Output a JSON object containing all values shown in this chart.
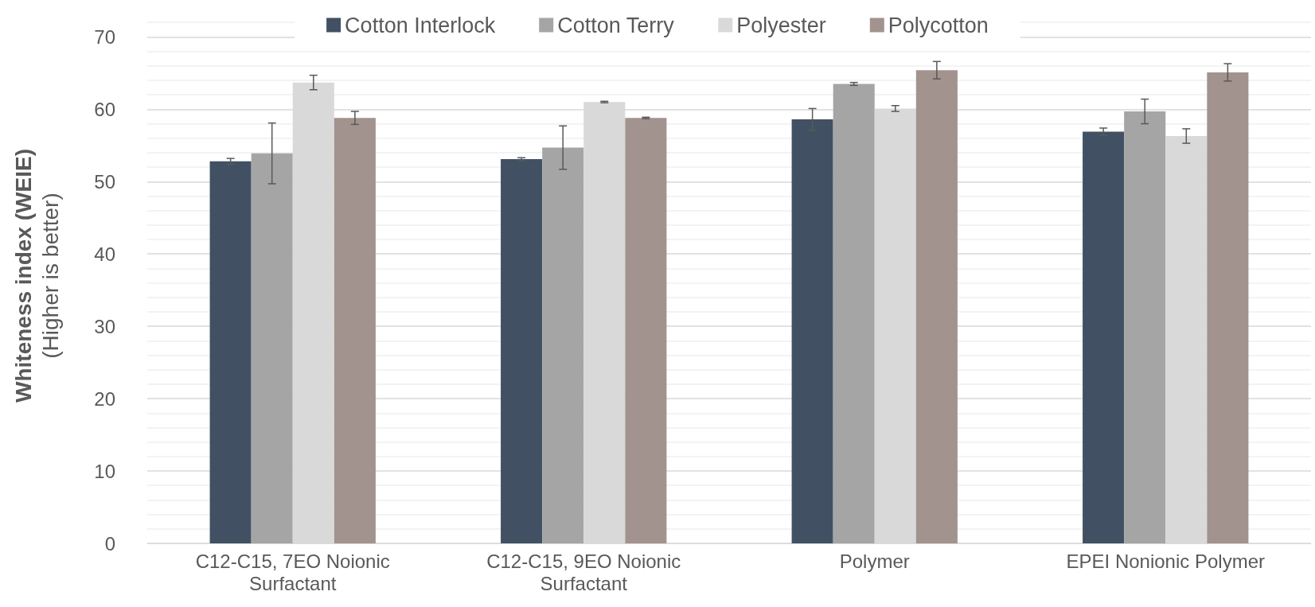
{
  "chart_data": {
    "type": "bar",
    "ylabel": "Whiteness index (WEIE)\n(Higher is better)",
    "categories": [
      "C12-C15, 7EO Noionic\nSurfactant",
      "C12-C15, 9EO Noionic\nSurfactant",
      "Polymer",
      "EPEI Nonionic Polymer"
    ],
    "series": [
      {
        "name": "Cotton Interlock",
        "color": "#415163",
        "values": [
          52.8,
          53.1,
          58.6,
          56.9
        ],
        "errors": [
          0.4,
          0.2,
          1.5,
          0.5
        ]
      },
      {
        "name": "Cotton Terry",
        "color": "#a5a5a5",
        "values": [
          53.9,
          54.7,
          63.5,
          59.7
        ],
        "errors": [
          4.2,
          3.0,
          0.2,
          1.7
        ]
      },
      {
        "name": "Polyester",
        "color": "#d9d9d9",
        "values": [
          63.7,
          61.0,
          60.1,
          56.3
        ],
        "errors": [
          1.0,
          0.1,
          0.4,
          1.0
        ]
      },
      {
        "name": "Polycotton",
        "color": "#a2938e",
        "values": [
          58.8,
          58.8,
          65.4,
          65.1
        ],
        "errors": [
          0.9,
          0.1,
          1.2,
          1.2
        ]
      }
    ],
    "ylim": [
      0,
      74
    ],
    "yticks": [
      0,
      10,
      20,
      30,
      40,
      50,
      60,
      70
    ],
    "grid": true,
    "legend": "top"
  }
}
